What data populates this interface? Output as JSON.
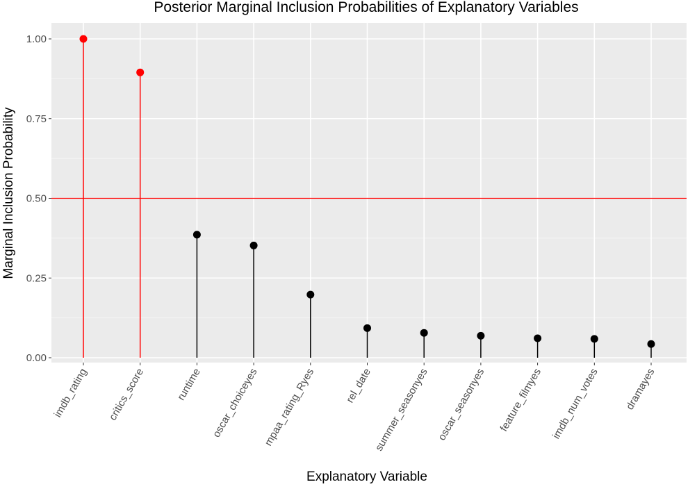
{
  "chart_data": {
    "type": "scatter",
    "title": "Posterior Marginal Inclusion Probabilities of Explanatory Variables",
    "xlabel": "Explanatory Variable",
    "ylabel": "Marginal Inclusion Probability",
    "categories": [
      "imdb_rating",
      "critics_score",
      "runtime",
      "oscar_choiceyes",
      "mpaa_rating_Ryes",
      "rel_date",
      "summer_seasonyes",
      "oscar_seasonyes",
      "feature_filmyes",
      "imdb_num_votes",
      "dramayes"
    ],
    "values": [
      1.0,
      0.895,
      0.386,
      0.352,
      0.198,
      0.093,
      0.078,
      0.069,
      0.061,
      0.059,
      0.043
    ],
    "ylim": [
      0,
      1.0
    ],
    "yticks": [
      0.0,
      0.25,
      0.5,
      0.75,
      1.0
    ],
    "ytick_labels": [
      "0.00",
      "0.25",
      "0.50",
      "0.75",
      "1.00"
    ],
    "threshold": 0.5,
    "grid": true,
    "colors": {
      "panel": "#ebebeb",
      "grid_major": "#ffffff",
      "highlight": "#ff0000",
      "normal": "#000000",
      "threshold_line": "#ff0000"
    }
  }
}
